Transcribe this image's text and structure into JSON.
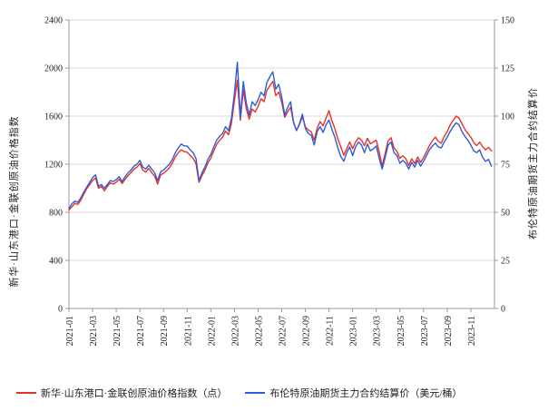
{
  "chart": {
    "left_axis": {
      "title": "新华·山东港口·金联创原油价格指数",
      "min": 0,
      "max": 2400,
      "ticks": [
        0,
        400,
        800,
        1200,
        1600,
        2000,
        2400
      ]
    },
    "right_axis": {
      "title": "布伦特原油期货主力合约结算价",
      "min": 0,
      "max": 150,
      "ticks": [
        0,
        25,
        50,
        75,
        100,
        125,
        150
      ]
    },
    "x_axis": {
      "tick_labels": [
        "2021-01",
        "2021-03",
        "2021-05",
        "2021-07",
        "2021-09",
        "2021-11",
        "2022-01",
        "2022-03",
        "2022-05",
        "2022-07",
        "2022-09",
        "2022-11",
        "2023-01",
        "2023-03",
        "2023-05",
        "2023-07",
        "2023-09",
        "2023-11"
      ],
      "months_total": 36
    },
    "colors": {
      "red": "#e53228",
      "blue": "#2f5cd6",
      "grid": "#d9d9d9",
      "axis": "#999999",
      "text": "#222222"
    }
  },
  "chart_data": {
    "type": "line",
    "title": "",
    "x_start": "2021-01",
    "x_end": "2023-12",
    "points_per_month": 4,
    "grid": "horizontal",
    "legend_position": "bottom",
    "series": [
      {
        "name": "新华·山东港口·金联创原油价格指数（点）",
        "axis": "left",
        "color_key": "red",
        "values": [
          820,
          845,
          875,
          865,
          900,
          950,
          995,
          1030,
          1065,
          1085,
          1000,
          1015,
          980,
          1015,
          1045,
          1035,
          1050,
          1075,
          1040,
          1075,
          1105,
          1130,
          1160,
          1175,
          1205,
          1150,
          1135,
          1165,
          1130,
          1100,
          1035,
          1110,
          1125,
          1145,
          1170,
          1210,
          1260,
          1295,
          1320,
          1305,
          1300,
          1275,
          1250,
          1205,
          1050,
          1105,
          1150,
          1210,
          1250,
          1310,
          1365,
          1400,
          1425,
          1475,
          1445,
          1540,
          1730,
          1900,
          1565,
          1820,
          1665,
          1575,
          1660,
          1635,
          1680,
          1745,
          1720,
          1815,
          1855,
          1890,
          1770,
          1800,
          1715,
          1590,
          1635,
          1675,
          1545,
          1480,
          1530,
          1595,
          1510,
          1485,
          1470,
          1400,
          1500,
          1555,
          1520,
          1585,
          1645,
          1560,
          1495,
          1410,
          1345,
          1275,
          1330,
          1385,
          1330,
          1385,
          1420,
          1400,
          1355,
          1415,
          1370,
          1385,
          1400,
          1300,
          1185,
          1290,
          1395,
          1420,
          1335,
          1305,
          1250,
          1270,
          1245,
          1190,
          1245,
          1205,
          1260,
          1215,
          1255,
          1305,
          1355,
          1395,
          1425,
          1390,
          1375,
          1430,
          1470,
          1525,
          1565,
          1600,
          1585,
          1535,
          1490,
          1455,
          1425,
          1380,
          1355,
          1385,
          1345,
          1320,
          1340,
          1310
        ]
      },
      {
        "name": "布伦特原油期货主力合约结算价（美元/桶）",
        "axis": "right",
        "color_key": "blue",
        "values": [
          52.0,
          54.5,
          55.8,
          55.2,
          57.5,
          60.5,
          63.0,
          65.5,
          68.0,
          69.5,
          63.5,
          64.5,
          62.5,
          64.5,
          66.5,
          66.0,
          67.0,
          68.5,
          66.0,
          68.5,
          70.5,
          72.0,
          74.0,
          75.0,
          77.0,
          73.5,
          72.5,
          74.5,
          72.5,
          70.5,
          66.5,
          71.0,
          72.0,
          73.5,
          75.0,
          77.5,
          81.0,
          83.5,
          85.5,
          84.5,
          84.5,
          82.5,
          81.0,
          78.0,
          66.5,
          70.5,
          73.5,
          77.5,
          80.0,
          84.0,
          87.5,
          89.5,
          91.0,
          94.5,
          92.5,
          99.0,
          112.0,
          128.0,
          99.5,
          118.0,
          107.0,
          100.5,
          107.5,
          105.5,
          108.5,
          112.5,
          110.5,
          117.5,
          120.5,
          123.0,
          114.0,
          116.5,
          110.0,
          100.5,
          104.5,
          107.5,
          97.0,
          92.5,
          96.0,
          101.0,
          93.5,
          91.0,
          90.0,
          85.0,
          92.0,
          94.5,
          91.5,
          95.5,
          98.0,
          93.0,
          89.0,
          83.5,
          79.0,
          76.5,
          81.0,
          84.0,
          79.5,
          84.0,
          86.5,
          85.0,
          81.0,
          85.5,
          82.0,
          83.0,
          84.5,
          78.0,
          72.5,
          78.5,
          85.0,
          86.5,
          81.0,
          79.5,
          75.5,
          77.0,
          75.5,
          72.5,
          76.0,
          73.5,
          77.0,
          74.0,
          76.5,
          79.5,
          82.5,
          84.5,
          86.0,
          84.0,
          83.5,
          86.5,
          89.0,
          92.0,
          94.5,
          96.5,
          95.5,
          92.0,
          89.5,
          87.5,
          85.0,
          82.0,
          81.0,
          82.5,
          78.5,
          76.5,
          77.5,
          74.0
        ]
      }
    ]
  },
  "legend": {
    "items": [
      {
        "label": "新华·山东港口·金联创原油价格指数（点）",
        "color_key": "red"
      },
      {
        "label": "布伦特原油期货主力合约结算价（美元/桶）",
        "color_key": "blue"
      }
    ]
  }
}
